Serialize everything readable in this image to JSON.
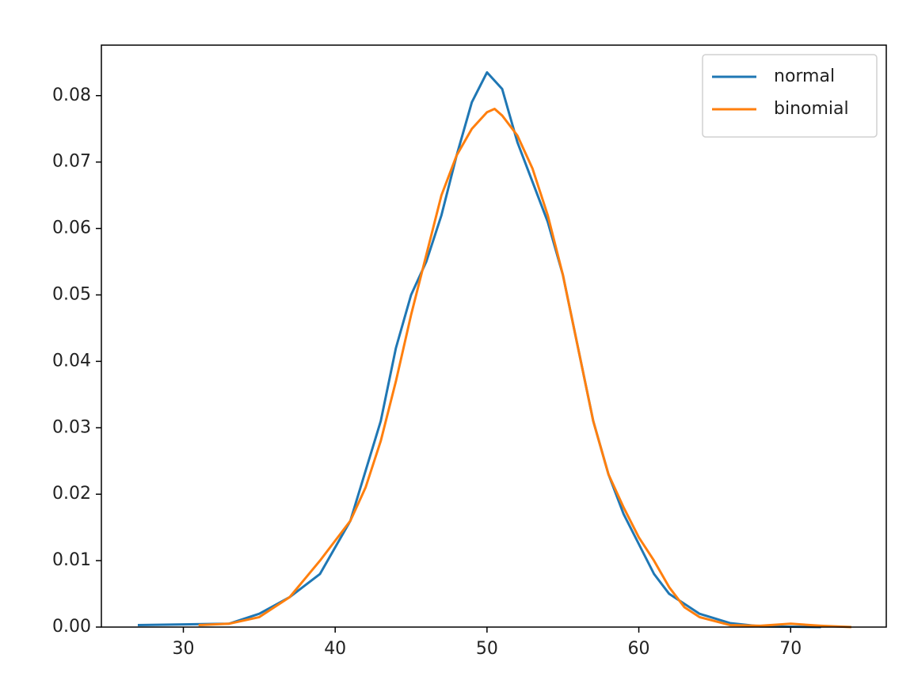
{
  "chart_data": {
    "type": "line",
    "series": [
      {
        "name": "normal",
        "color": "#1f77b4",
        "x": [
          27,
          30,
          33,
          35,
          37,
          39,
          41,
          43,
          44,
          45,
          46,
          47,
          48,
          49,
          50,
          51,
          52,
          53,
          54,
          55,
          56,
          57,
          58,
          59,
          60,
          61,
          62,
          63,
          64,
          66,
          68,
          72
        ],
        "values": [
          0.0003,
          0.0004,
          0.0005,
          0.002,
          0.0045,
          0.008,
          0.016,
          0.031,
          0.042,
          0.05,
          0.055,
          0.062,
          0.071,
          0.079,
          0.0835,
          0.081,
          0.073,
          0.067,
          0.061,
          0.053,
          0.042,
          0.031,
          0.023,
          0.017,
          0.0125,
          0.008,
          0.005,
          0.0035,
          0.002,
          0.0006,
          0.0001,
          0.0
        ]
      },
      {
        "name": "binomial",
        "color": "#ff7f0e",
        "x": [
          31,
          33,
          35,
          37,
          39,
          41,
          42,
          43,
          44,
          45,
          46,
          47,
          48,
          49,
          50,
          50.5,
          51,
          52,
          53,
          54,
          55,
          56,
          57,
          58,
          59,
          60,
          61,
          62,
          63,
          64,
          66,
          68,
          70,
          72,
          74
        ],
        "values": [
          0.0003,
          0.0005,
          0.0015,
          0.0045,
          0.01,
          0.016,
          0.021,
          0.028,
          0.037,
          0.047,
          0.056,
          0.065,
          0.071,
          0.075,
          0.0775,
          0.078,
          0.077,
          0.074,
          0.069,
          0.062,
          0.053,
          0.042,
          0.031,
          0.023,
          0.018,
          0.0135,
          0.01,
          0.006,
          0.003,
          0.0015,
          0.0003,
          0.0002,
          0.0005,
          0.0002,
          0.0
        ]
      }
    ],
    "xlim": [
      24.6,
      76.3
    ],
    "xticks": [
      30,
      40,
      50,
      60,
      70
    ],
    "ylim": [
      0,
      0.0876
    ],
    "yticks": [
      {
        "value": 0,
        "label": "0.00"
      },
      {
        "value": 0.01,
        "label": "0.01"
      },
      {
        "value": 0.02,
        "label": "0.02"
      },
      {
        "value": 0.03,
        "label": "0.03"
      },
      {
        "value": 0.04,
        "label": "0.04"
      },
      {
        "value": 0.05,
        "label": "0.05"
      },
      {
        "value": 0.06,
        "label": "0.06"
      },
      {
        "value": 0.07,
        "label": "0.07"
      },
      {
        "value": 0.08,
        "label": "0.08"
      }
    ],
    "legend": "upper right"
  }
}
